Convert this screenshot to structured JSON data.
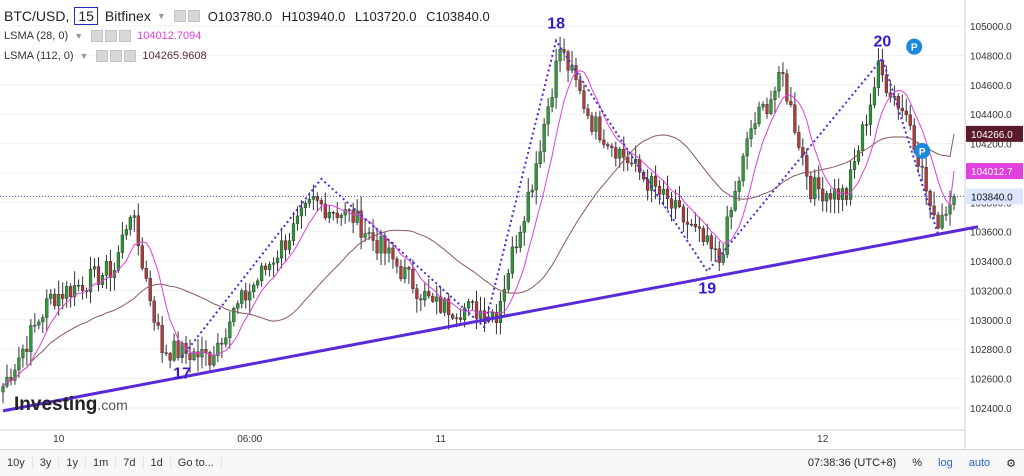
{
  "header": {
    "symbol": "BTC/USD,",
    "interval": "15",
    "exchange": "Bitfinex",
    "open": "O103780.0",
    "high": "H103940.0",
    "low": "L103720.0",
    "close": "C103840.0"
  },
  "indicators": [
    {
      "label": "LSMA (28, 0)",
      "value": "104012.7094",
      "color": "#e040e0"
    },
    {
      "label": "LSMA (112, 0)",
      "value": "104265.9608",
      "color": "#7a4040"
    }
  ],
  "price_tags": {
    "lsma112": "104266.0",
    "lsma28": "104012.7",
    "close": "103840.0"
  },
  "logo": {
    "name": "Investing",
    "suffix": ".com"
  },
  "bottom_bar": {
    "timeframes": [
      "10y",
      "3y",
      "1y",
      "1m",
      "7d",
      "1d",
      "Go to..."
    ],
    "time": "07:38:36 (UTC+8)",
    "percent": "%",
    "log": "log",
    "auto": "auto",
    "settings_icon": "gear-icon"
  },
  "chart_data": {
    "type": "candlestick",
    "title": "",
    "x_tick_labels": [
      "10",
      "06:00",
      "11",
      "12"
    ],
    "y_ticks": [
      102400,
      102600,
      102800,
      103000,
      103200,
      103400,
      103600,
      103800,
      104000,
      104200,
      104400,
      104600,
      104800,
      105000
    ],
    "ylim": [
      102250,
      105150
    ],
    "wave_labels": [
      "17",
      "18",
      "19",
      "20"
    ],
    "anchors": [
      {
        "t": 0,
        "v": 102550
      },
      {
        "t": 12,
        "v": 103150
      },
      {
        "t": 28,
        "v": 103350
      },
      {
        "t": 32,
        "v": 103750
      },
      {
        "t": 40,
        "v": 102800
      },
      {
        "t": 52,
        "v": 102750
      },
      {
        "t": 58,
        "v": 103050
      },
      {
        "t": 78,
        "v": 103800
      },
      {
        "t": 88,
        "v": 103700
      },
      {
        "t": 98,
        "v": 103400
      },
      {
        "t": 108,
        "v": 103100
      },
      {
        "t": 124,
        "v": 103050
      },
      {
        "t": 133,
        "v": 103950
      },
      {
        "t": 140,
        "v": 104850
      },
      {
        "t": 148,
        "v": 104350
      },
      {
        "t": 160,
        "v": 104000
      },
      {
        "t": 172,
        "v": 103650
      },
      {
        "t": 180,
        "v": 103400
      },
      {
        "t": 188,
        "v": 104300
      },
      {
        "t": 196,
        "v": 104650
      },
      {
        "t": 203,
        "v": 103900
      },
      {
        "t": 212,
        "v": 103850
      },
      {
        "t": 220,
        "v": 104700
      },
      {
        "t": 228,
        "v": 104350
      },
      {
        "t": 234,
        "v": 103650
      },
      {
        "t": 239,
        "v": 103840
      }
    ],
    "zigzag": [
      {
        "t": 45,
        "v": 102750
      },
      {
        "t": 80,
        "v": 103960
      },
      {
        "t": 121,
        "v": 102950
      },
      {
        "t": 139,
        "v": 104900
      },
      {
        "t": 177,
        "v": 103330
      },
      {
        "t": 221,
        "v": 104780
      },
      {
        "t": 235,
        "v": 103580
      }
    ],
    "trendline": {
      "start": {
        "t": 0,
        "v": 102380
      },
      "end": {
        "t": 240,
        "v": 103620
      }
    },
    "current_price": 103840.0,
    "lsma28_last": 104012.7,
    "lsma112_last": 104266.0
  }
}
